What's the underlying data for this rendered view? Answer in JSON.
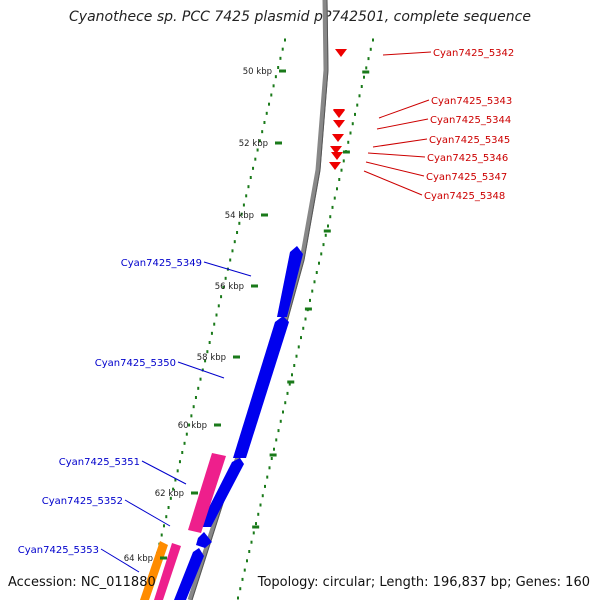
{
  "title": "Cyanothece sp. PCC 7425 plasmid pP742501, complete sequence",
  "footer": {
    "accession": "Accession: NC_011880",
    "summary": "Topology: circular; Length: 196,837 bp; Genes: 160"
  },
  "colors": {
    "forward_gene": "#0000ee",
    "reverse_gene": "#ee0000",
    "pink_feature": "#ee1f8c",
    "orange_feature": "#ff8c00",
    "backbone": "#888888",
    "gc_ticks": "#1a7a1a",
    "reverse_label": "#cc0000",
    "forward_label": "#0000cc"
  },
  "scale_labels": [
    "50 kbp",
    "52 kbp",
    "54 kbp",
    "56 kbp",
    "58 kbp",
    "60 kbp",
    "62 kbp",
    "64 kbp"
  ],
  "reverse_genes": [
    "Cyan7425_5342",
    "Cyan7425_5343",
    "Cyan7425_5344",
    "Cyan7425_5345",
    "Cyan7425_5346",
    "Cyan7425_5347",
    "Cyan7425_5348"
  ],
  "forward_genes": [
    "Cyan7425_5349",
    "Cyan7425_5350",
    "Cyan7425_5351",
    "Cyan7425_5352",
    "Cyan7425_5353"
  ]
}
